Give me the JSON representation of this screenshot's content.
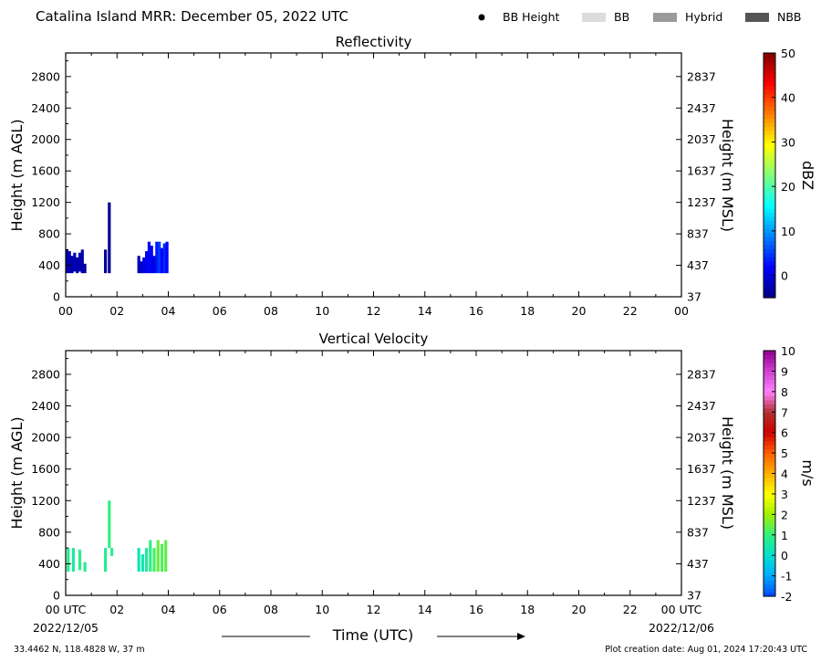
{
  "header": {
    "title": "Catalina Island MRR:  December 05, 2022 UTC",
    "legend": [
      {
        "label": "BB Height",
        "kind": "dot",
        "color": "#000000"
      },
      {
        "label": "BB",
        "kind": "patch",
        "color": "#dcdcdc"
      },
      {
        "label": "Hybrid",
        "kind": "patch",
        "color": "#9a9a9a"
      },
      {
        "label": "NBB",
        "kind": "patch",
        "color": "#555555"
      }
    ]
  },
  "footer": {
    "location": "33.4462 N, 118.4828 W, 37 m",
    "creation": "Plot creation date: Aug 01, 2024 17:20:43 UTC",
    "xlabel": "Time (UTC)",
    "date_start": "2022/12/05",
    "date_end": "2022/12/06"
  },
  "chart_data": [
    {
      "type": "heatmap",
      "title": "Reflectivity",
      "ylabel": "Height (m AGL)",
      "ylabel_right": "Height (m MSL)",
      "colorbar_label": "dBZ",
      "colorbar_range": [
        -5,
        50
      ],
      "colorbar_ticks": [
        "0",
        "10",
        "20",
        "30",
        "40",
        "50"
      ],
      "colormap": [
        "#00007f",
        "#0000ff",
        "#007fff",
        "#00ffff",
        "#7fff7f",
        "#ffff00",
        "#ff7f00",
        "#ff0000",
        "#7f0000"
      ],
      "xlim": [
        0,
        24
      ],
      "ylim": [
        0,
        3100
      ],
      "xticks": [
        "00",
        "02",
        "04",
        "06",
        "08",
        "10",
        "12",
        "14",
        "16",
        "18",
        "20",
        "22",
        "00"
      ],
      "yticks_left": [
        "0",
        "400",
        "800",
        "1200",
        "1600",
        "2000",
        "2400",
        "2800"
      ],
      "yticks_right": [
        "37",
        "437",
        "837",
        "1237",
        "1637",
        "2037",
        "2437",
        "2837"
      ],
      "columns": [
        {
          "t": 0.05,
          "bottom": 300,
          "top": 600,
          "value": -3
        },
        {
          "t": 0.15,
          "bottom": 300,
          "top": 580,
          "value": -2
        },
        {
          "t": 0.25,
          "bottom": 300,
          "top": 520,
          "value": -3
        },
        {
          "t": 0.35,
          "bottom": 320,
          "top": 560,
          "value": -2
        },
        {
          "t": 0.45,
          "bottom": 300,
          "top": 500,
          "value": -3
        },
        {
          "t": 0.55,
          "bottom": 320,
          "top": 560,
          "value": -2
        },
        {
          "t": 0.65,
          "bottom": 300,
          "top": 600,
          "value": -3
        },
        {
          "t": 0.75,
          "bottom": 300,
          "top": 420,
          "value": -3
        },
        {
          "t": 1.55,
          "bottom": 300,
          "top": 600,
          "value": -3
        },
        {
          "t": 1.7,
          "bottom": 300,
          "top": 1200,
          "value": -4
        },
        {
          "t": 2.85,
          "bottom": 300,
          "top": 520,
          "value": -2
        },
        {
          "t": 2.95,
          "bottom": 300,
          "top": 450,
          "value": -1
        },
        {
          "t": 3.05,
          "bottom": 300,
          "top": 500,
          "value": 0
        },
        {
          "t": 3.15,
          "bottom": 300,
          "top": 580,
          "value": 1
        },
        {
          "t": 3.25,
          "bottom": 300,
          "top": 700,
          "value": 2
        },
        {
          "t": 3.35,
          "bottom": 300,
          "top": 650,
          "value": 1
        },
        {
          "t": 3.45,
          "bottom": 300,
          "top": 520,
          "value": 0
        },
        {
          "t": 3.55,
          "bottom": 300,
          "top": 700,
          "value": 3
        },
        {
          "t": 3.65,
          "bottom": 300,
          "top": 700,
          "value": 5
        },
        {
          "t": 3.75,
          "bottom": 300,
          "top": 620,
          "value": 2
        },
        {
          "t": 3.85,
          "bottom": 300,
          "top": 680,
          "value": 4
        },
        {
          "t": 3.95,
          "bottom": 300,
          "top": 700,
          "value": 2
        }
      ]
    },
    {
      "type": "heatmap",
      "title": "Vertical Velocity",
      "ylabel": "Height (m AGL)",
      "ylabel_right": "Height (m MSL)",
      "colorbar_label": "m/s",
      "colorbar_range": [
        -2,
        10
      ],
      "colorbar_ticks": [
        "-2",
        "-1",
        "0",
        "1",
        "2",
        "3",
        "4",
        "5",
        "6",
        "7",
        "8",
        "9",
        "10"
      ],
      "colormap": [
        "#0044ff",
        "#00aaff",
        "#00e0d0",
        "#30f080",
        "#a0f000",
        "#ffff00",
        "#ffb000",
        "#ff6000",
        "#d00000",
        "#b03030",
        "#ff80ff",
        "#d040d0",
        "#900090"
      ],
      "xlim": [
        0,
        24
      ],
      "ylim": [
        0,
        3100
      ],
      "xticks": [
        "00 UTC",
        "02",
        "04",
        "06",
        "08",
        "10",
        "12",
        "14",
        "16",
        "18",
        "20",
        "22",
        "00 UTC"
      ],
      "yticks_left": [
        "0",
        "400",
        "800",
        "1200",
        "1600",
        "2000",
        "2400",
        "2800"
      ],
      "yticks_right": [
        "37",
        "437",
        "837",
        "1237",
        "1637",
        "2037",
        "2437",
        "2837"
      ],
      "columns": [
        {
          "t": 0.1,
          "bottom": 300,
          "top": 600,
          "value": 0.8
        },
        {
          "t": 0.3,
          "bottom": 300,
          "top": 600,
          "value": 0.6
        },
        {
          "t": 0.55,
          "bottom": 320,
          "top": 580,
          "value": 0.9
        },
        {
          "t": 0.75,
          "bottom": 300,
          "top": 420,
          "value": 0.7
        },
        {
          "t": 1.55,
          "bottom": 300,
          "top": 600,
          "value": 0.8
        },
        {
          "t": 1.7,
          "bottom": 600,
          "top": 1200,
          "value": 1.0
        },
        {
          "t": 1.8,
          "bottom": 500,
          "top": 600,
          "value": 0.9
        },
        {
          "t": 2.85,
          "bottom": 300,
          "top": 600,
          "value": 0.3
        },
        {
          "t": 3.0,
          "bottom": 300,
          "top": 520,
          "value": 0.4
        },
        {
          "t": 3.15,
          "bottom": 300,
          "top": 600,
          "value": 0.6
        },
        {
          "t": 3.3,
          "bottom": 300,
          "top": 700,
          "value": 0.9
        },
        {
          "t": 3.45,
          "bottom": 300,
          "top": 600,
          "value": 1.2
        },
        {
          "t": 3.6,
          "bottom": 300,
          "top": 700,
          "value": 1.5
        },
        {
          "t": 3.75,
          "bottom": 300,
          "top": 650,
          "value": 1.3
        },
        {
          "t": 3.9,
          "bottom": 300,
          "top": 700,
          "value": 1.4
        }
      ]
    }
  ]
}
